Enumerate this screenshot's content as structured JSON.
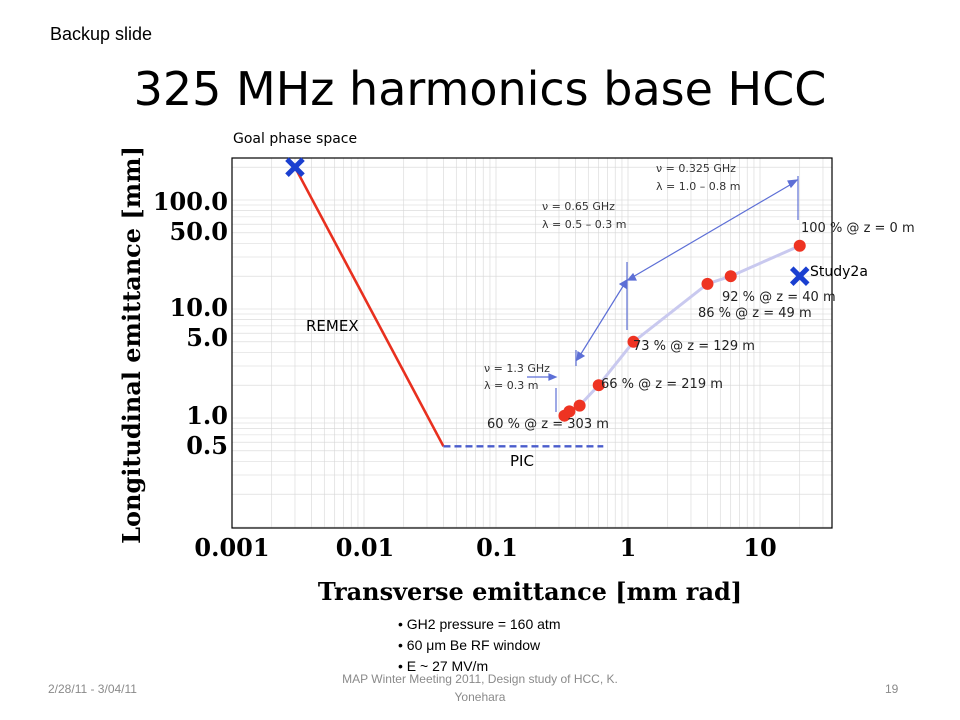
{
  "slide": {
    "tag": "Backup slide",
    "title": "325 MHz harmonics base HCC"
  },
  "footer": {
    "date": "2/28/11 - 3/04/11",
    "meeting": "MAP Winter Meeting 2011, Design study of HCC, K. Yonehara",
    "page": "19"
  },
  "bullets": [
    "GH2 pressure = 160 atm",
    "60 μm Be RF window",
    "E ~ 27 MV/m"
  ],
  "colors": {
    "remex": "#e8301f",
    "pic": "#4a5ccc",
    "hcc_line": "#c9c9ef",
    "hcc_point": "#ee3322",
    "marker": "#1a3fd0",
    "arrow": "#5d6fd6"
  },
  "chart_data": {
    "type": "scatter",
    "xlabel": "Transverse emittance [mm rad]",
    "ylabel": "Longitudinal emittance [mm]",
    "xscale": "log",
    "yscale": "log",
    "x_ticks": [
      "0.001",
      "0.01",
      "0.1",
      "1",
      "10"
    ],
    "y_ticks": [
      "100.0",
      "50.0",
      "10.0",
      "5.0",
      "1.0",
      "0.5"
    ],
    "series": [
      {
        "name": "REMEX",
        "style": "solid",
        "points": [
          [
            0.003,
            200
          ],
          [
            0.04,
            0.55
          ]
        ]
      },
      {
        "name": "PIC",
        "style": "dashed",
        "points": [
          [
            0.04,
            0.55
          ],
          [
            0.65,
            0.55
          ]
        ]
      },
      {
        "name": "",
        "style": "points",
        "points": [
          [
            0.33,
            1.05
          ],
          [
            0.36,
            1.15
          ],
          [
            0.43,
            1.3
          ],
          [
            0.6,
            2.0
          ],
          [
            1.1,
            5.0
          ],
          [
            4.0,
            17
          ],
          [
            6.0,
            20
          ],
          [
            20,
            38
          ]
        ],
        "labels": [
          "60 % @ z = 303 m",
          "66 % @ z = 219 m",
          "73 % @ z = 129 m",
          "86 % @ z = 49 m",
          "92 % @ z = 40 m",
          "100 % @ z = 0 m"
        ]
      }
    ],
    "markers": [
      {
        "label": "Goal phase space",
        "x": 0.003,
        "y": 200
      },
      {
        "label": "Study2a",
        "x": 20,
        "y": 20
      }
    ],
    "annotations": [
      {
        "line1": "ν = 1.3 GHz",
        "line2": "λ = 0.3 m"
      },
      {
        "line1": "ν = 0.65 GHz",
        "line2": "λ = 0.5 – 0.3 m"
      },
      {
        "line1": "ν = 0.325 GHz",
        "line2": "λ = 1.0 – 0.8 m"
      }
    ]
  }
}
